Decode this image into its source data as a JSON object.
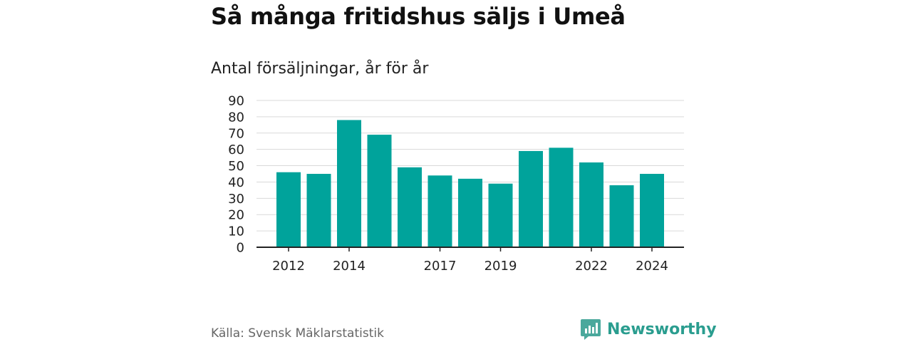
{
  "header": {
    "title": "Så många fritidshus säljs i Umeå",
    "subtitle": "Antal försäljningar, år för år"
  },
  "footer": {
    "source": "Källa: Svensk Mäklarstatistik",
    "brand": "Newsworthy",
    "brand_icon": "newsworthy-logo-icon"
  },
  "colors": {
    "bar": "#00a39b",
    "grid": "#d9d9d9",
    "axis": "#222222",
    "brand": "#2a9d8f"
  },
  "chart_data": {
    "type": "bar",
    "categories": [
      "2012",
      "2013",
      "2014",
      "2015",
      "2016",
      "2017",
      "2018",
      "2019",
      "2020",
      "2021",
      "2022",
      "2023",
      "2024"
    ],
    "values": [
      46,
      45,
      78,
      69,
      49,
      44,
      42,
      39,
      59,
      61,
      52,
      38,
      45
    ],
    "x_tick_labels": [
      "2012",
      "2014",
      "2017",
      "2019",
      "2022",
      "2024"
    ],
    "y_ticks": [
      "0",
      "10",
      "20",
      "30",
      "40",
      "50",
      "60",
      "70",
      "80",
      "90"
    ],
    "ylim": [
      0,
      90
    ],
    "grid": true,
    "legend": "none"
  }
}
